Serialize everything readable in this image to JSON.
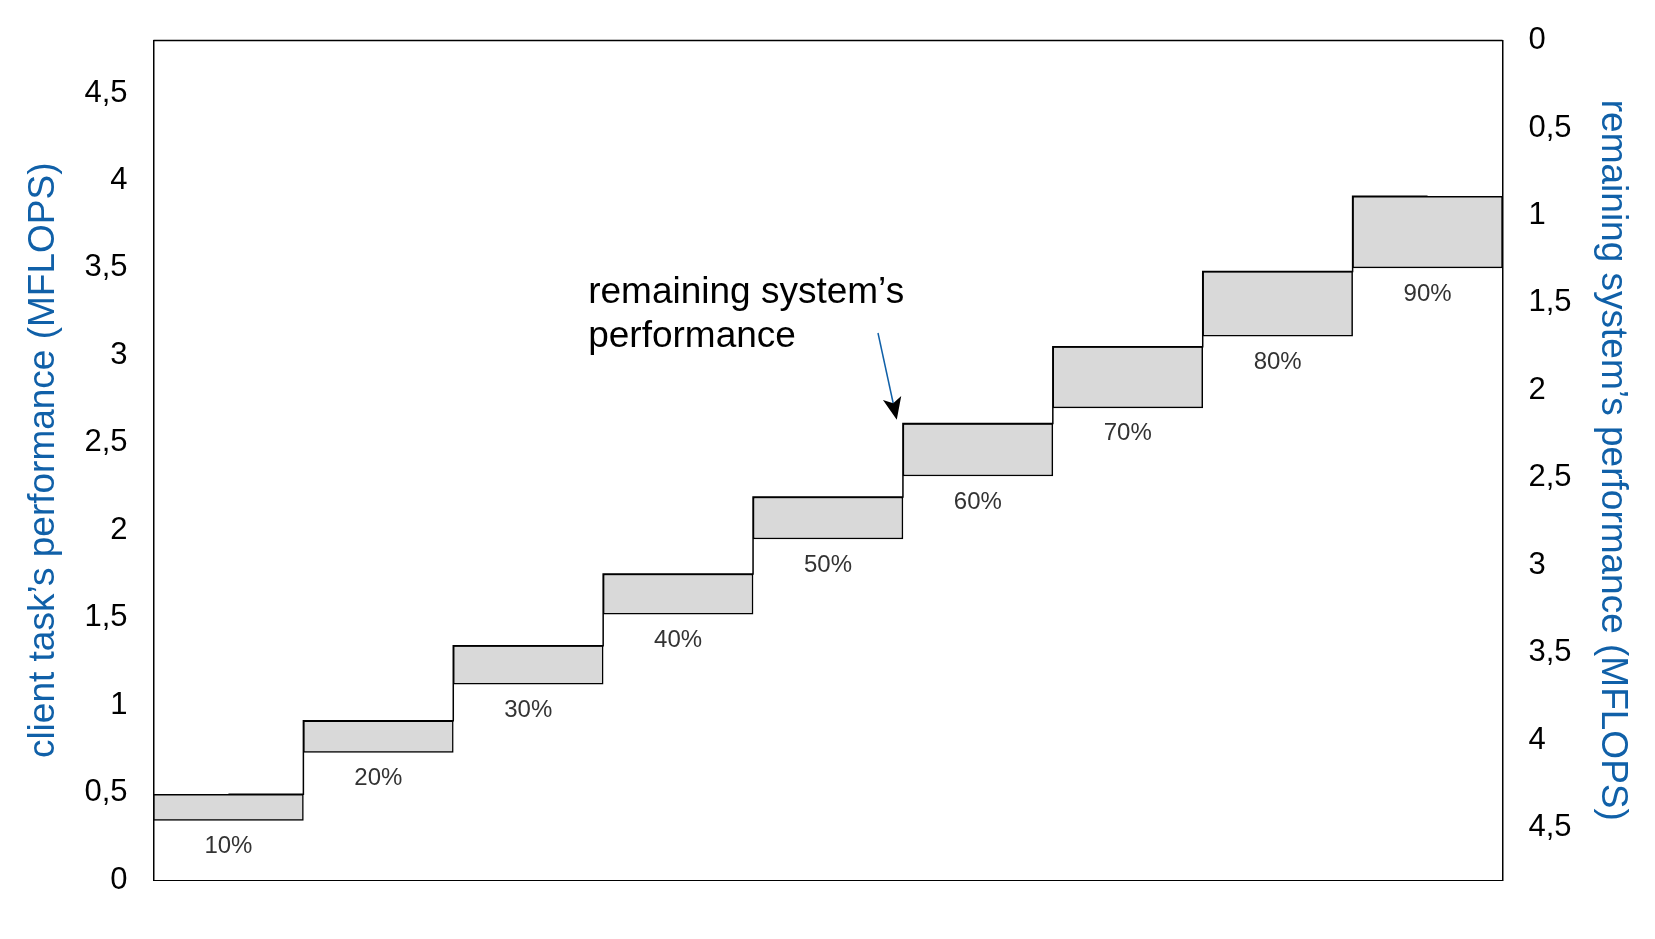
{
  "chart_data": {
    "type": "bar",
    "categories": [
      null,
      null,
      null,
      null,
      null,
      null,
      null,
      null,
      null
    ],
    "series": [
      {
        "color": "#d9d9d9",
        "base": [
          0.34,
          0.73,
          1.12,
          1.52,
          1.95,
          2.31,
          2.7,
          3.11,
          3.5
        ],
        "values": [
          0.15,
          0.18,
          0.22,
          0.23,
          0.24,
          0.3,
          0.35,
          0.37,
          0.41
        ]
      },
      {
        "type": "step",
        "axis": "y2",
        "color": "#000000",
        "values": [
          4.31,
          3.89,
          3.46,
          3.05,
          2.61,
          2.19,
          1.75,
          1.32,
          0.89
        ]
      }
    ],
    "ylabel": "client task’s performance (MFLOPS)",
    "y2label": "remaining system’s performance (MFLOPS)",
    "ylim": [
      0,
      4.8
    ],
    "yticks": [
      0,
      {
        "value": 0.5,
        "label": "0,5"
      },
      1,
      {
        "value": 1.5,
        "label": "1,5"
      },
      2,
      {
        "value": 2.5,
        "label": "2,5"
      },
      3,
      {
        "value": 3.5,
        "label": "3,5"
      },
      4,
      {
        "value": 4.5,
        "label": "4,5"
      }
    ],
    "y2lim": [
      4.8,
      0
    ],
    "y2ticks": [
      0,
      {
        "value": 0.5,
        "label": "0,5"
      },
      1,
      {
        "value": 1.5,
        "label": "1,5"
      },
      2,
      {
        "value": 2.5,
        "label": "2,5"
      },
      3,
      {
        "value": 3.5,
        "label": "3,5"
      },
      4,
      {
        "value": 4.5,
        "label": "4,5"
      }
    ],
    "tick_labels": "y",
    "annotations": [
      "remaining system’s performance",
      "10%",
      "20%",
      "30%",
      "40%",
      "50%",
      "60%",
      "70%",
      "80%",
      "90%"
    ]
  }
}
